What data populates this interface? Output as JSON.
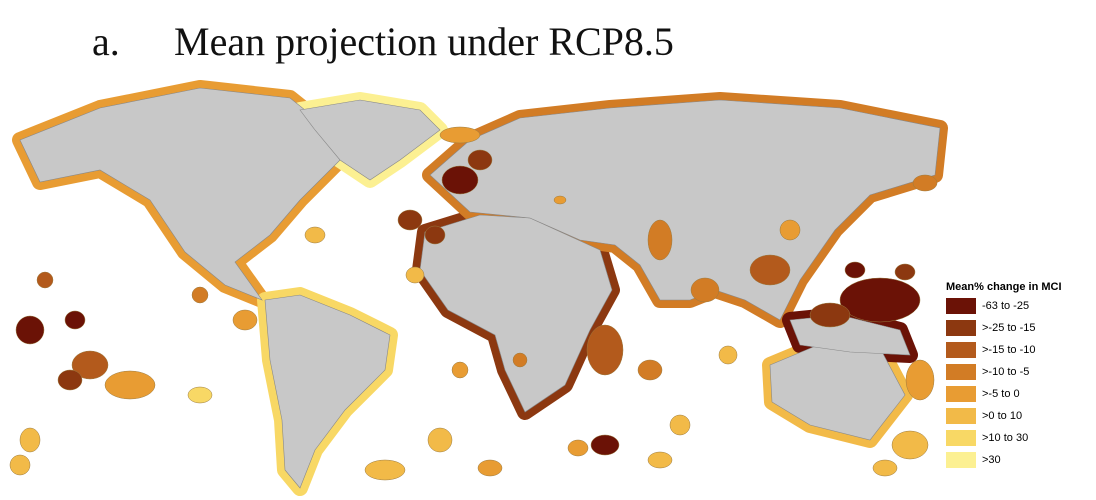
{
  "header": {
    "label": "a.",
    "title": "Mean projection under RCP8.5"
  },
  "legend": {
    "title": "Mean% change in MCI",
    "items": [
      {
        "label": "-63 to -25",
        "color": "#6b1206"
      },
      {
        "label": ">-25 to -15",
        "color": "#8c3810"
      },
      {
        "label": ">-15 to -10",
        "color": "#b35a1c"
      },
      {
        "label": ">-10 to -5",
        "color": "#d27c25"
      },
      {
        "label": ">-5 to 0",
        "color": "#e89c33"
      },
      {
        "label": ">0 to 10",
        "color": "#f2ba48"
      },
      {
        "label": ">10 to 30",
        "color": "#f8d865"
      },
      {
        "label": ">30",
        "color": "#fcf092"
      }
    ]
  }
}
